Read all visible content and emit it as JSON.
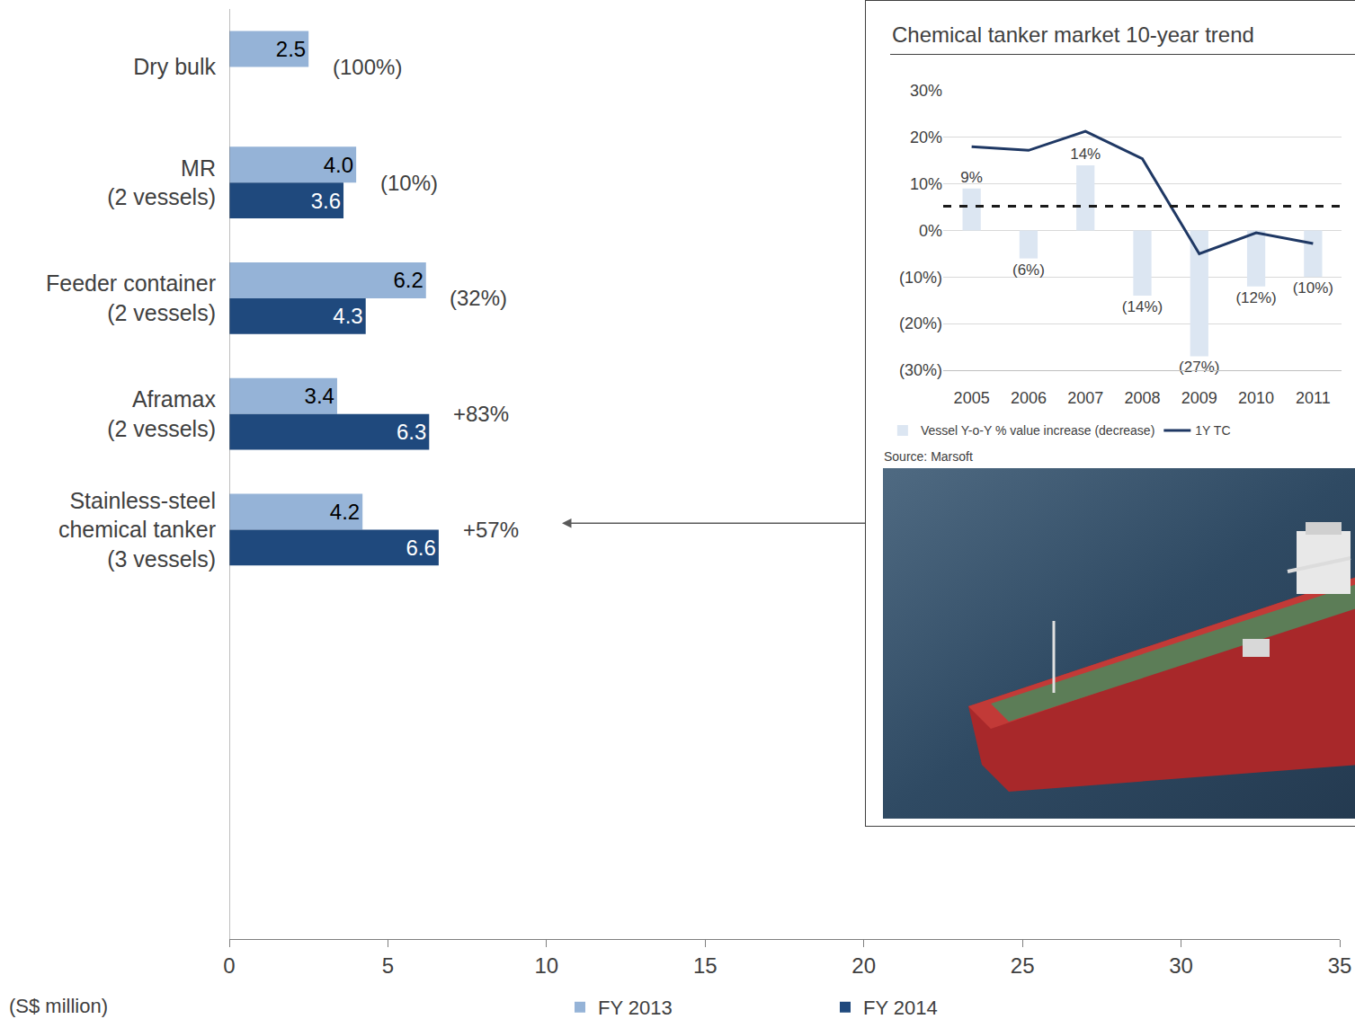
{
  "chart_data": [
    {
      "type": "bar",
      "orientation": "horizontal",
      "categories": [
        "Dry bulk",
        "MR\n(2 vessels)",
        "Feeder container\n(2 vessels)",
        "Aframax\n(2 vessels)",
        "Stainless-steel\nchemical tanker\n(3 vessels)"
      ],
      "series": [
        {
          "name": "FY 2013",
          "color": "#95b3d7",
          "values": [
            2.5,
            4.0,
            6.2,
            3.4,
            4.2
          ],
          "value_labels": [
            "2.5",
            "4.0",
            "6.2",
            "3.4",
            "4.2"
          ]
        },
        {
          "name": "FY 2014",
          "color": "#1f497d",
          "values": [
            null,
            3.6,
            4.3,
            6.3,
            6.6
          ],
          "value_labels": [
            null,
            "3.6",
            "4.3",
            "6.3",
            "6.6"
          ]
        }
      ],
      "annotations": [
        "(100%)",
        "(10%)",
        "(32%)",
        "+83%",
        "+57%"
      ],
      "x_label": "(S$ million)",
      "xlim": [
        0,
        35
      ],
      "xticks": [
        0,
        5,
        10,
        15,
        20,
        25,
        30,
        35
      ],
      "data_labels": true,
      "grid": false,
      "legend": "bottom"
    },
    {
      "type": "bar",
      "title": "Chemical tanker market 10-year trend",
      "source": "Source: Marsoft",
      "x": [
        2005,
        2006,
        2007,
        2008,
        2009,
        2010,
        2011
      ],
      "series": [
        {
          "name": "Vessel Y-o-Y % value increase (decrease)",
          "type": "bar",
          "color": "#dce6f2",
          "values": [
            9,
            -6,
            14,
            -14,
            -27,
            -12,
            -10
          ],
          "value_labels": [
            "9%",
            "(6%)",
            "14%",
            "(14%)",
            "(27%)",
            "(12%)",
            "(10%)"
          ]
        },
        {
          "name": "1Y TC",
          "type": "line",
          "color": "#1f3864",
          "values": [
            18,
            17.2,
            21.3,
            15.4,
            -5,
            -0.5,
            -2.8
          ]
        }
      ],
      "reference_line": 5.2,
      "xlim": [
        2004.5,
        2011.5
      ],
      "xticks": [
        2005,
        2006,
        2007,
        2008,
        2009,
        2010,
        2011
      ],
      "ylim": [
        -30,
        30
      ],
      "yticks": [
        {
          "value": 30,
          "label": "30%"
        },
        {
          "value": 20,
          "label": "20%"
        },
        {
          "value": 10,
          "label": "10%"
        },
        {
          "value": 0,
          "label": "0%"
        },
        {
          "value": -10,
          "label": "(10%)"
        },
        {
          "value": -20,
          "label": "(20%)"
        },
        {
          "value": -30,
          "label": "(30%)"
        }
      ],
      "grid": true,
      "data_labels": true,
      "legend": "bottom"
    }
  ]
}
